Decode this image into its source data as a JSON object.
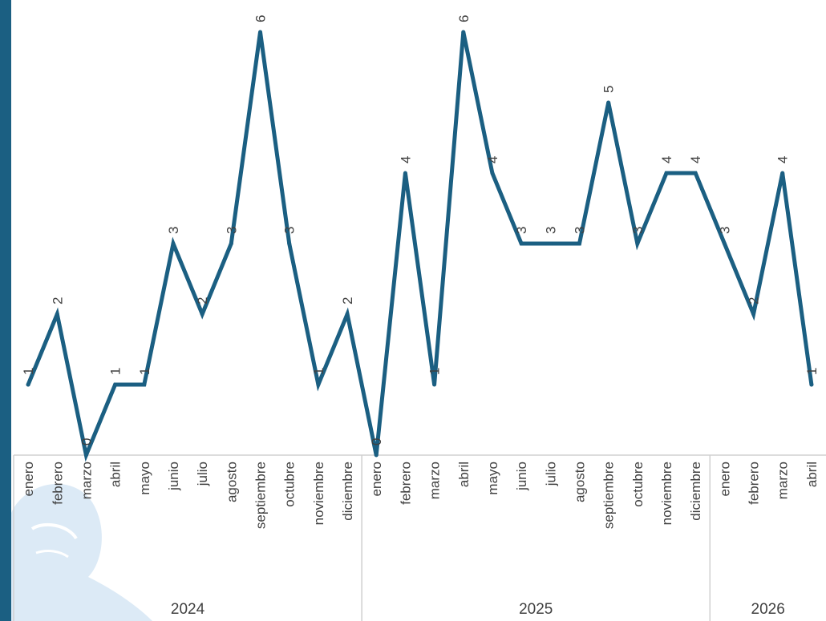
{
  "chart_data": {
    "type": "line",
    "title": "",
    "xlabel": "",
    "ylabel": "",
    "color": "#1b5f82",
    "ylim": [
      0,
      6
    ],
    "grid": false,
    "legend": "none",
    "groups": [
      {
        "label": "2024",
        "count": 12
      },
      {
        "label": "2025",
        "count": 12
      },
      {
        "label": "2026",
        "count": 4
      }
    ],
    "categories": [
      "enero",
      "febrero",
      "marzo",
      "abril",
      "mayo",
      "junio",
      "julio",
      "agosto",
      "septiembre",
      "octubre",
      "noviembre",
      "diciembre",
      "enero",
      "febrero",
      "marzo",
      "abril",
      "mayo",
      "junio",
      "julio",
      "agosto",
      "septiembre",
      "octubre",
      "noviembre",
      "diciembre",
      "enero",
      "febrero",
      "marzo",
      "abril"
    ],
    "series": [
      {
        "values": [
          1,
          2,
          0,
          1,
          1,
          3,
          2,
          3,
          6,
          3,
          1,
          2,
          0,
          4,
          1,
          6,
          4,
          3,
          3,
          3,
          5,
          3,
          4,
          4,
          3,
          2,
          4,
          1
        ]
      }
    ]
  }
}
